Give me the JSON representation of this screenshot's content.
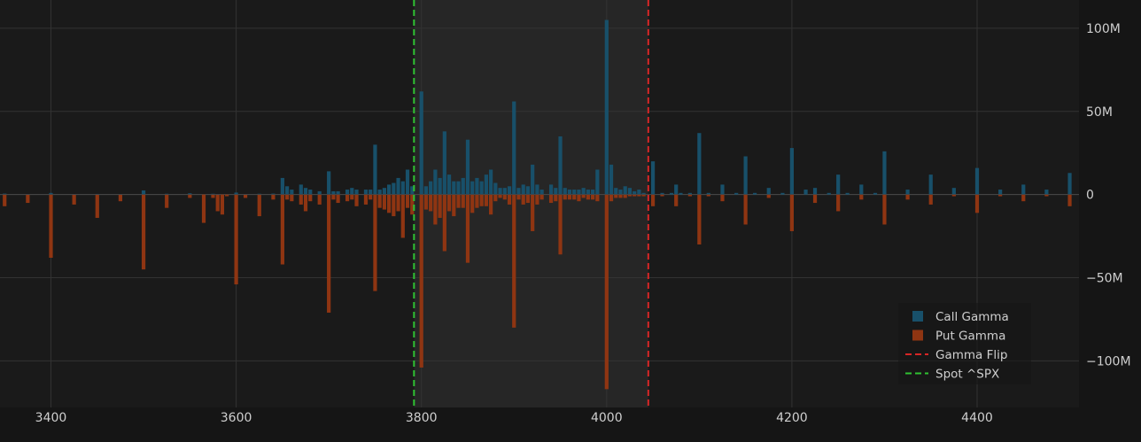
{
  "chart_data": {
    "type": "bar",
    "xlim": [
      3345,
      4510
    ],
    "ylim": [
      -128,
      117
    ],
    "x_ticks": [
      3400,
      3600,
      3800,
      4000,
      4200,
      4400
    ],
    "y_ticks": [
      100,
      50,
      0,
      -50,
      -100
    ],
    "y_tick_labels": [
      "100M",
      "50M",
      "0",
      "−50M",
      "−100M"
    ],
    "grid": true,
    "legend_position": "bottom-right",
    "shaded_region": [
      3792,
      4045
    ],
    "colors": {
      "background": "#151515",
      "plot_background": "#1a1a1a",
      "shade": "#262626",
      "grid": "#333333",
      "axis_text": "#cfcfcf",
      "call": "#18506a",
      "put": "#8f3512",
      "flip": "#d62626",
      "spot": "#2fc232"
    },
    "series": [
      {
        "name": "Call Gamma",
        "points": [
          [
            3350,
            0.6
          ],
          [
            3375,
            0.3
          ],
          [
            3400,
            1
          ],
          [
            3425,
            0.3
          ],
          [
            3450,
            0.4
          ],
          [
            3475,
            0.3
          ],
          [
            3500,
            2.5
          ],
          [
            3525,
            0.5
          ],
          [
            3550,
            0.8
          ],
          [
            3575,
            0.5
          ],
          [
            3580,
            0.3
          ],
          [
            3600,
            1.2
          ],
          [
            3610,
            0.3
          ],
          [
            3625,
            0.5
          ],
          [
            3640,
            0.6
          ],
          [
            3650,
            10
          ],
          [
            3655,
            5
          ],
          [
            3660,
            3
          ],
          [
            3670,
            6
          ],
          [
            3675,
            4
          ],
          [
            3680,
            3
          ],
          [
            3690,
            2
          ],
          [
            3700,
            14
          ],
          [
            3705,
            2
          ],
          [
            3710,
            2
          ],
          [
            3720,
            3
          ],
          [
            3725,
            4
          ],
          [
            3730,
            3
          ],
          [
            3740,
            3
          ],
          [
            3745,
            3
          ],
          [
            3750,
            30
          ],
          [
            3755,
            3
          ],
          [
            3760,
            4
          ],
          [
            3765,
            6
          ],
          [
            3770,
            7
          ],
          [
            3775,
            10
          ],
          [
            3780,
            8
          ],
          [
            3785,
            15
          ],
          [
            3790,
            5
          ],
          [
            3800,
            62
          ],
          [
            3805,
            5
          ],
          [
            3810,
            8
          ],
          [
            3815,
            15
          ],
          [
            3820,
            10
          ],
          [
            3825,
            38
          ],
          [
            3830,
            12
          ],
          [
            3835,
            8
          ],
          [
            3840,
            8
          ],
          [
            3845,
            10
          ],
          [
            3850,
            33
          ],
          [
            3855,
            8
          ],
          [
            3860,
            10
          ],
          [
            3865,
            8
          ],
          [
            3870,
            12
          ],
          [
            3875,
            15
          ],
          [
            3880,
            7
          ],
          [
            3885,
            4
          ],
          [
            3890,
            4
          ],
          [
            3895,
            5
          ],
          [
            3900,
            56
          ],
          [
            3905,
            4
          ],
          [
            3910,
            6
          ],
          [
            3915,
            5
          ],
          [
            3920,
            18
          ],
          [
            3925,
            6
          ],
          [
            3930,
            3
          ],
          [
            3940,
            6
          ],
          [
            3945,
            4
          ],
          [
            3950,
            35
          ],
          [
            3955,
            4
          ],
          [
            3960,
            3
          ],
          [
            3965,
            3
          ],
          [
            3970,
            3
          ],
          [
            3975,
            4
          ],
          [
            3980,
            3
          ],
          [
            3985,
            3
          ],
          [
            3990,
            15
          ],
          [
            4000,
            105
          ],
          [
            4005,
            18
          ],
          [
            4010,
            4
          ],
          [
            4015,
            3
          ],
          [
            4020,
            5
          ],
          [
            4025,
            4
          ],
          [
            4030,
            2
          ],
          [
            4035,
            3
          ],
          [
            4040,
            1
          ],
          [
            4050,
            20
          ],
          [
            4060,
            1
          ],
          [
            4070,
            1
          ],
          [
            4075,
            6
          ],
          [
            4080,
            1
          ],
          [
            4090,
            1
          ],
          [
            4100,
            37
          ],
          [
            4110,
            1
          ],
          [
            4125,
            6
          ],
          [
            4140,
            1
          ],
          [
            4150,
            23
          ],
          [
            4160,
            1
          ],
          [
            4175,
            4
          ],
          [
            4190,
            1
          ],
          [
            4200,
            28
          ],
          [
            4215,
            3
          ],
          [
            4225,
            4
          ],
          [
            4240,
            1
          ],
          [
            4250,
            12
          ],
          [
            4260,
            1
          ],
          [
            4275,
            6
          ],
          [
            4290,
            1
          ],
          [
            4300,
            26
          ],
          [
            4325,
            3
          ],
          [
            4350,
            12
          ],
          [
            4375,
            4
          ],
          [
            4400,
            16
          ],
          [
            4425,
            3
          ],
          [
            4450,
            6
          ],
          [
            4475,
            3
          ],
          [
            4500,
            13
          ]
        ]
      },
      {
        "name": "Put Gamma",
        "points": [
          [
            3350,
            -7
          ],
          [
            3375,
            -5
          ],
          [
            3400,
            -38
          ],
          [
            3425,
            -6
          ],
          [
            3450,
            -14
          ],
          [
            3475,
            -4
          ],
          [
            3500,
            -45
          ],
          [
            3525,
            -8
          ],
          [
            3550,
            -2
          ],
          [
            3565,
            -17
          ],
          [
            3575,
            -2
          ],
          [
            3580,
            -10
          ],
          [
            3585,
            -12
          ],
          [
            3590,
            -1
          ],
          [
            3600,
            -54
          ],
          [
            3610,
            -2
          ],
          [
            3625,
            -13
          ],
          [
            3640,
            -3
          ],
          [
            3650,
            -42
          ],
          [
            3655,
            -3
          ],
          [
            3660,
            -4
          ],
          [
            3670,
            -6
          ],
          [
            3675,
            -10
          ],
          [
            3680,
            -4
          ],
          [
            3690,
            -6
          ],
          [
            3700,
            -71
          ],
          [
            3705,
            -3
          ],
          [
            3710,
            -5
          ],
          [
            3720,
            -4
          ],
          [
            3725,
            -3
          ],
          [
            3730,
            -7
          ],
          [
            3740,
            -6
          ],
          [
            3745,
            -3
          ],
          [
            3750,
            -58
          ],
          [
            3755,
            -8
          ],
          [
            3760,
            -9
          ],
          [
            3765,
            -11
          ],
          [
            3770,
            -13
          ],
          [
            3775,
            -10
          ],
          [
            3780,
            -26
          ],
          [
            3785,
            -8
          ],
          [
            3790,
            -12
          ],
          [
            3800,
            -104
          ],
          [
            3805,
            -9
          ],
          [
            3810,
            -10
          ],
          [
            3815,
            -18
          ],
          [
            3820,
            -14
          ],
          [
            3825,
            -34
          ],
          [
            3830,
            -10
          ],
          [
            3835,
            -13
          ],
          [
            3840,
            -8
          ],
          [
            3845,
            -8
          ],
          [
            3850,
            -41
          ],
          [
            3855,
            -11
          ],
          [
            3860,
            -8
          ],
          [
            3865,
            -7
          ],
          [
            3870,
            -7
          ],
          [
            3875,
            -12
          ],
          [
            3880,
            -4
          ],
          [
            3885,
            -2
          ],
          [
            3890,
            -3
          ],
          [
            3895,
            -6
          ],
          [
            3900,
            -80
          ],
          [
            3905,
            -3
          ],
          [
            3910,
            -6
          ],
          [
            3915,
            -5
          ],
          [
            3920,
            -22
          ],
          [
            3925,
            -6
          ],
          [
            3930,
            -3
          ],
          [
            3940,
            -5
          ],
          [
            3945,
            -4
          ],
          [
            3950,
            -36
          ],
          [
            3955,
            -3
          ],
          [
            3960,
            -3
          ],
          [
            3965,
            -3
          ],
          [
            3970,
            -4
          ],
          [
            3975,
            -2
          ],
          [
            3980,
            -3
          ],
          [
            3985,
            -3
          ],
          [
            3990,
            -4
          ],
          [
            4000,
            -117
          ],
          [
            4005,
            -4
          ],
          [
            4010,
            -2
          ],
          [
            4015,
            -2
          ],
          [
            4020,
            -2
          ],
          [
            4025,
            -1
          ],
          [
            4030,
            -1
          ],
          [
            4035,
            -1
          ],
          [
            4040,
            -1
          ],
          [
            4050,
            -7
          ],
          [
            4060,
            -1
          ],
          [
            4075,
            -7
          ],
          [
            4090,
            -1
          ],
          [
            4100,
            -30
          ],
          [
            4110,
            -1
          ],
          [
            4125,
            -4
          ],
          [
            4150,
            -18
          ],
          [
            4175,
            -2
          ],
          [
            4200,
            -22
          ],
          [
            4225,
            -5
          ],
          [
            4250,
            -10
          ],
          [
            4275,
            -3
          ],
          [
            4300,
            -18
          ],
          [
            4325,
            -3
          ],
          [
            4350,
            -6
          ],
          [
            4375,
            -1
          ],
          [
            4400,
            -11
          ],
          [
            4425,
            -1
          ],
          [
            4450,
            -4
          ],
          [
            4475,
            -1
          ],
          [
            4500,
            -7
          ]
        ]
      }
    ],
    "reference_lines": [
      {
        "name": "Gamma Flip",
        "x": 4045,
        "color": "#d62626"
      },
      {
        "name": "Spot ^SPX",
        "x": 3792,
        "color": "#2fc232"
      }
    ]
  }
}
